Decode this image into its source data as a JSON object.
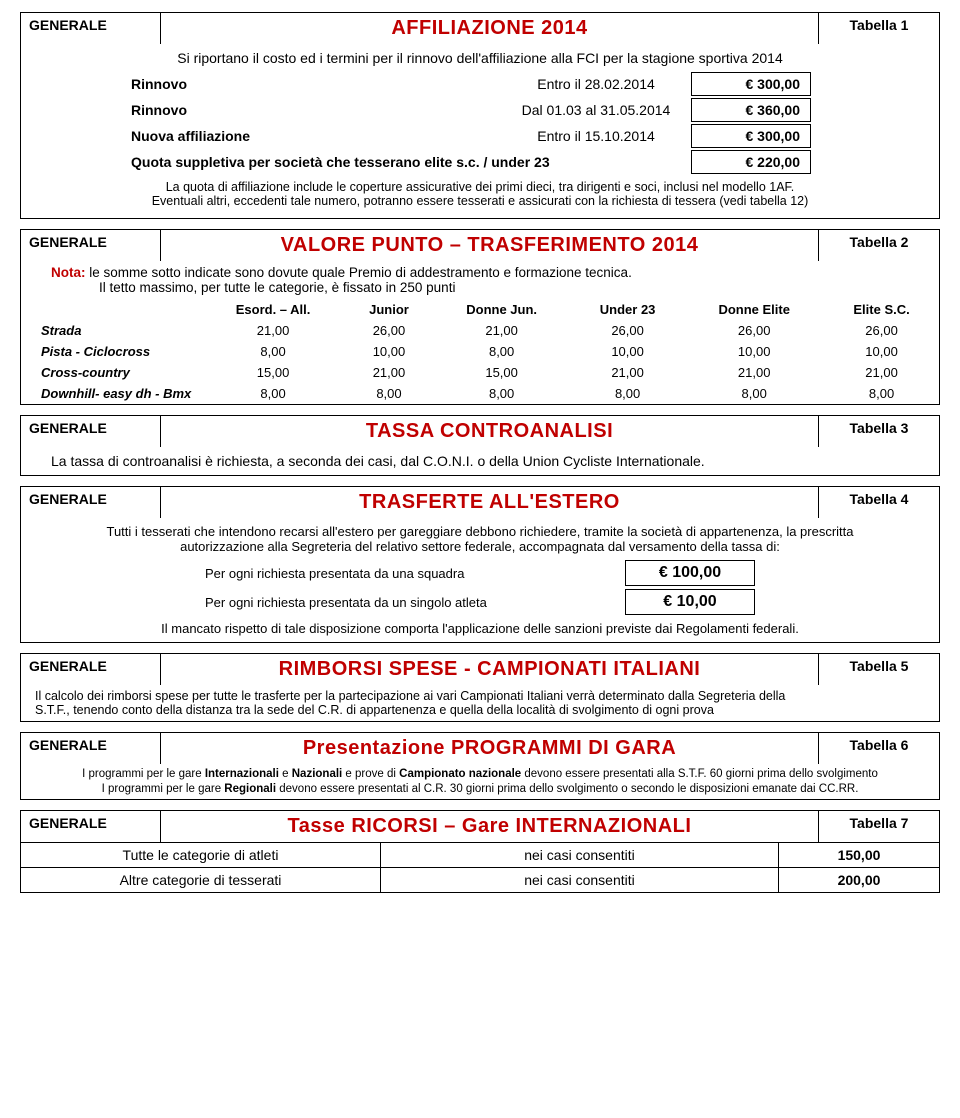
{
  "t1": {
    "cat": "GENERALE",
    "title": "AFFILIAZIONE 2014",
    "tab": "Tabella 1",
    "desc": "Si riportano il costo ed i termini per il rinnovo dell'affiliazione alla FCI per la stagione sportiva 2014",
    "rows": [
      {
        "label": "Rinnovo",
        "date": "Entro il 28.02.2014",
        "amt": "€   300,00"
      },
      {
        "label": "Rinnovo",
        "date": "Dal 01.03 al 31.05.2014",
        "amt": "€   360,00"
      },
      {
        "label": "Nuova affiliazione",
        "date": "Entro il 15.10.2014",
        "amt": "€   300,00"
      },
      {
        "label": "Quota suppletiva per società che tesserano elite s.c. / under 23",
        "date": "",
        "amt": "€   220,00"
      }
    ],
    "note1": "La quota di affiliazione include le coperture assicurative dei primi dieci, tra dirigenti e soci, inclusi nel modello 1AF.",
    "note2": "Eventuali altri, eccedenti tale numero, potranno essere tesserati e assicurati con la richiesta di tessera (vedi tabella 12)"
  },
  "t2": {
    "cat": "GENERALE",
    "title": "VALORE PUNTO – TRASFERIMENTO 2014",
    "tab": "Tabella 2",
    "nota_lbl": "Nota:",
    "nota1": "le somme sotto indicate sono dovute quale Premio di addestramento e formazione tecnica.",
    "nota2": "Il tetto massimo, per tutte le categorie, è fissato in 250 punti",
    "headers": [
      "Esord. – All.",
      "Junior",
      "Donne Jun.",
      "Under 23",
      "Donne Elite",
      "Elite S.C."
    ],
    "rows": [
      {
        "label": "Strada",
        "v": [
          "21,00",
          "26,00",
          "21,00",
          "26,00",
          "26,00",
          "26,00"
        ]
      },
      {
        "label": "Pista - Ciclocross",
        "v": [
          "8,00",
          "10,00",
          "8,00",
          "10,00",
          "10,00",
          "10,00"
        ]
      },
      {
        "label": "Cross-country",
        "v": [
          "15,00",
          "21,00",
          "15,00",
          "21,00",
          "21,00",
          "21,00"
        ]
      },
      {
        "label": "Downhill- easy dh - Bmx",
        "v": [
          "8,00",
          "8,00",
          "8,00",
          "8,00",
          "8,00",
          "8,00"
        ]
      }
    ]
  },
  "t3": {
    "cat": "GENERALE",
    "title": "TASSA CONTROANALISI",
    "tab": "Tabella 3",
    "desc": "La tassa di controanalisi è richiesta, a seconda dei casi, dal C.O.N.I. o della Union Cycliste Internationale."
  },
  "t4": {
    "cat": "GENERALE",
    "title": "TRASFERTE ALL'ESTERO",
    "tab": "Tabella 4",
    "desc1": "Tutti i tesserati che intendono recarsi all'estero per gareggiare debbono richiedere, tramite la società di appartenenza, la prescritta",
    "desc2": "autorizzazione alla Segreteria del relativo settore federale, accompagnata dal versamento della tassa di:",
    "r1_lbl": "Per ogni richiesta presentata da una squadra",
    "r1_amt": "€  100,00",
    "r2_lbl": "Per ogni richiesta presentata da un singolo atleta",
    "r2_amt": "€   10,00",
    "foot": "Il mancato rispetto di tale disposizione comporta l'applicazione delle sanzioni previste dai Regolamenti federali."
  },
  "t5": {
    "cat": "GENERALE",
    "title": "RIMBORSI SPESE - CAMPIONATI ITALIANI",
    "tab": "Tabella 5",
    "d1": "Il calcolo dei rimborsi spese per tutte le trasferte per la partecipazione ai vari Campionati Italiani verrà determinato dalla Segreteria della",
    "d2": "S.T.F., tenendo conto della distanza tra la sede del C.R. di appartenenza e quella della località di svolgimento di ogni prova"
  },
  "t6": {
    "cat": "GENERALE",
    "title": "Presentazione PROGRAMMI  DI GARA",
    "tab": "Tabella 6",
    "d1a": "I programmi per le gare ",
    "d1b": "Internazionali",
    "d1c": " e ",
    "d1d": "Nazionali",
    "d1e": " e prove di ",
    "d1f": "Campionato nazionale",
    "d1g": " devono essere presentati alla S.T.F. 60 giorni prima dello svolgimento",
    "d2a": "I programmi per le gare ",
    "d2b": "Regionali",
    "d2c": " devono essere presentati al C.R. 30 giorni prima dello svolgimento o secondo le disposizioni emanate dai CC.RR."
  },
  "t7": {
    "cat": "GENERALE",
    "title": "Tasse RICORSI – Gare INTERNAZIONALI",
    "tab": "Tabella 7",
    "rows": [
      {
        "c1": "Tutte le categorie di atleti",
        "c2": "nei casi consentiti",
        "c3": "150,00"
      },
      {
        "c1": "Altre categorie di tesserati",
        "c2": "nei casi consentiti",
        "c3": "200,00"
      }
    ]
  }
}
